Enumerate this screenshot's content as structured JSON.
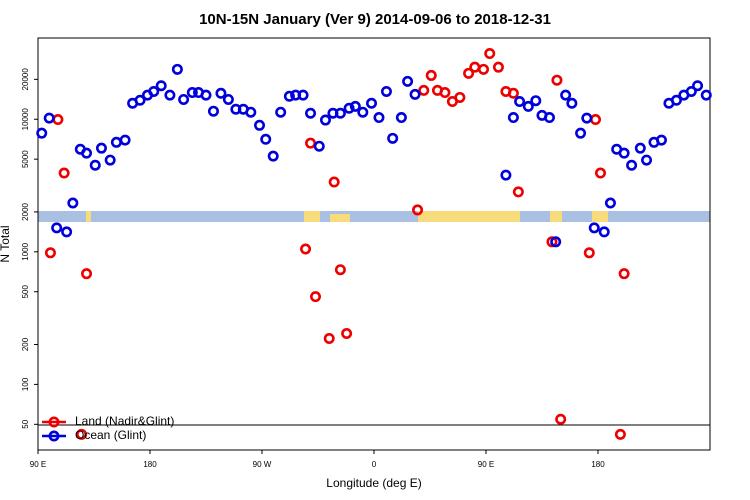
{
  "chart_data": {
    "type": "scatter",
    "title": "10N-15N January (Ver 9)   2014-09-06 to 2018-12-31",
    "x_label": "Longitude (deg E)",
    "y_label": "N Total",
    "log_y": true,
    "legend": "bottom-left",
    "xlim": [
      90,
      630
    ],
    "xticks": [
      {
        "value": 90,
        "label": "90 E"
      },
      180,
      {
        "value": 270,
        "label": "90 W"
      },
      {
        "value": 360,
        "label": "0"
      },
      {
        "value": 450,
        "label": "90 E"
      },
      {
        "value": 540,
        "label": "180"
      }
    ],
    "ylim": [
      32,
      41000
    ],
    "yticks": [
      50,
      100,
      200,
      500,
      1000,
      2000,
      5000,
      10000,
      20000
    ],
    "series": [
      {
        "name": "Land (Nadir&Glint)",
        "color": "#ee0000",
        "x": [
          100,
          106,
          111,
          129,
          125,
          305,
          309,
          313,
          324,
          328,
          333,
          338,
          395,
          400,
          406,
          411,
          417,
          423,
          429,
          436,
          441,
          448,
          453,
          460,
          466,
          472,
          476,
          503,
          507,
          510,
          533,
          538,
          542,
          561,
          558
        ],
        "values": [
          983,
          9950,
          3930,
          684,
          42,
          1050,
          6600,
          459,
          222,
          3360,
          733,
          242,
          2070,
          16500,
          21400,
          16500,
          15900,
          13600,
          14600,
          22200,
          24700,
          23800,
          31300,
          24700,
          16200,
          15700,
          2830,
          1190,
          19700,
          54.6,
          983,
          9950,
          3930,
          684,
          42
        ]
      },
      {
        "name": "Ocean (Glint)",
        "color": "#0000dd",
        "x": [
          93,
          99,
          105,
          113,
          118,
          124,
          129,
          136,
          141,
          148,
          153,
          160,
          166,
          172,
          178,
          183,
          189,
          196,
          202,
          207,
          214,
          219,
          225,
          231,
          237,
          243,
          249,
          255,
          261,
          268,
          273,
          279,
          285,
          292,
          297,
          303,
          309,
          316,
          321,
          327,
          333,
          340,
          345,
          351,
          358,
          364,
          370,
          375,
          382,
          387,
          393,
          466,
          472,
          477,
          484,
          490,
          495,
          501,
          506,
          514,
          519,
          526,
          531,
          537,
          545,
          550,
          555,
          561,
          567,
          574,
          579,
          585,
          591,
          597,
          603,
          609,
          615,
          620,
          627
        ],
        "values": [
          7850,
          10200,
          1516,
          1413,
          2335,
          5940,
          5550,
          4500,
          6050,
          4920,
          6700,
          6960,
          13200,
          13900,
          15200,
          16200,
          17900,
          15200,
          23800,
          14100,
          15900,
          15900,
          15200,
          11500,
          15700,
          14100,
          11900,
          11900,
          11300,
          9000,
          7060,
          5270,
          11300,
          14900,
          15200,
          15200,
          11100,
          6260,
          9860,
          11100,
          11100,
          12100,
          12500,
          11300,
          13200,
          10300,
          16200,
          7180,
          10300,
          19300,
          15400,
          3790,
          10300,
          13600,
          12500,
          13800,
          10700,
          10300,
          1190,
          15200,
          13200,
          7850,
          10200,
          1516,
          1413,
          2335,
          5940,
          5550,
          4500,
          6050,
          4920,
          6700,
          6960,
          13200,
          13900,
          15200,
          16200,
          17900,
          15200
        ]
      }
    ]
  }
}
